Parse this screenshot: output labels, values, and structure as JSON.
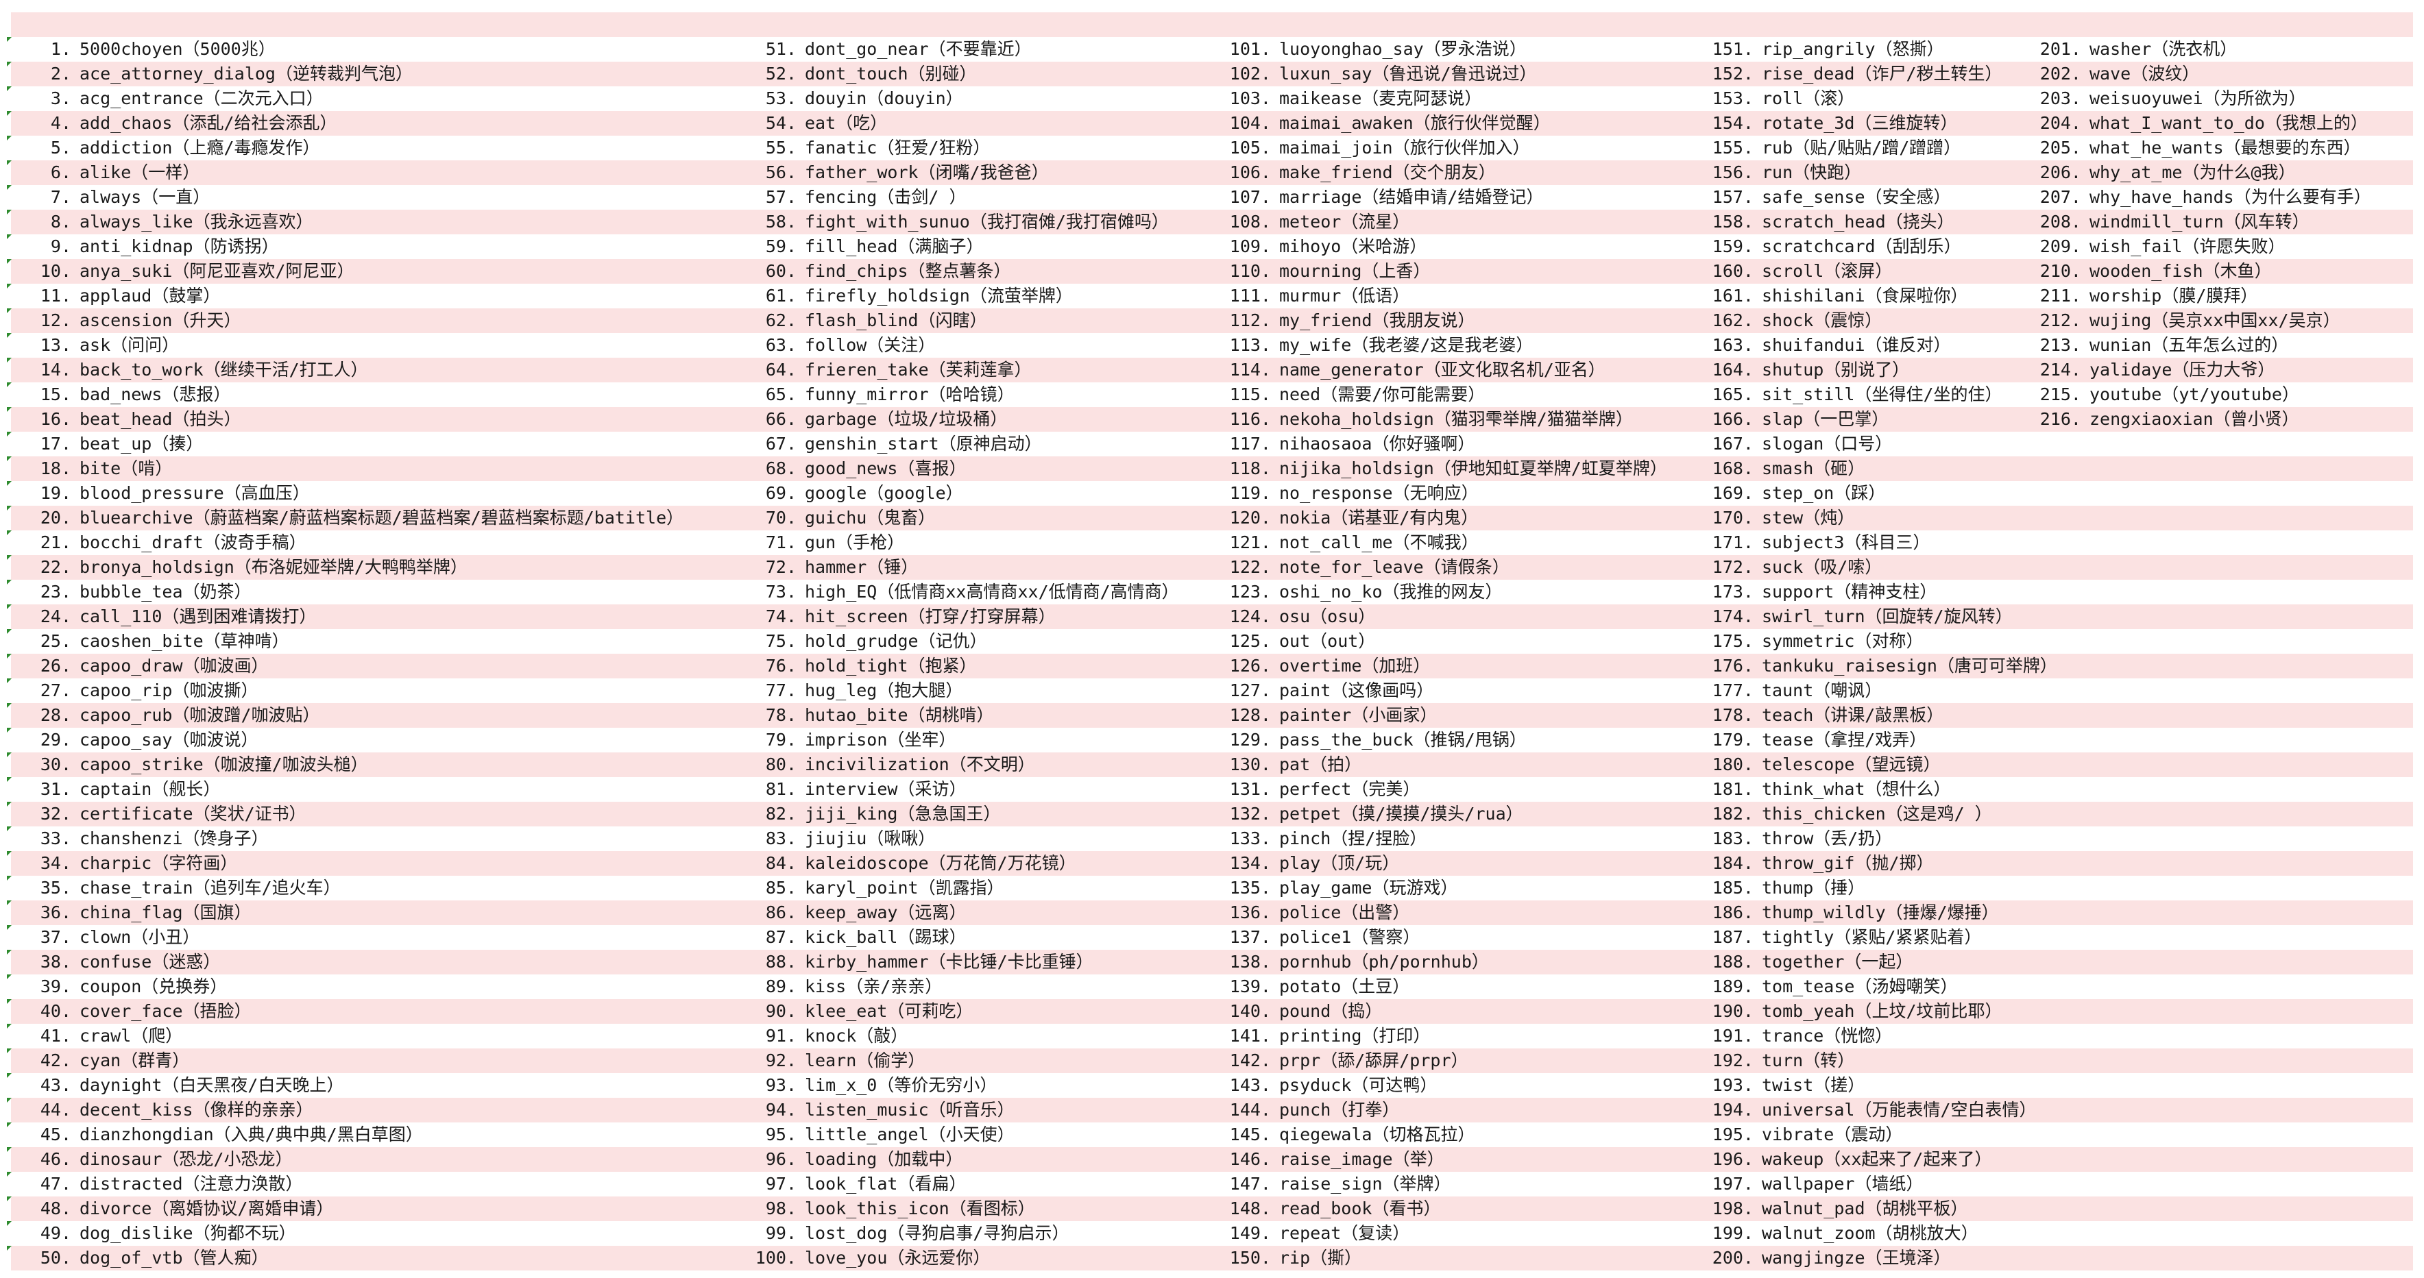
{
  "columns": [
    {
      "key": "c1",
      "items": [
        {
          "num": "1.",
          "text": "5000choyen（5000兆）"
        },
        {
          "num": "2.",
          "text": "ace_attorney_dialog（逆转裁判气泡）"
        },
        {
          "num": "3.",
          "text": "acg_entrance（二次元入口）"
        },
        {
          "num": "4.",
          "text": "add_chaos（添乱/给社会添乱）"
        },
        {
          "num": "5.",
          "text": "addiction（上瘾/毒瘾发作）"
        },
        {
          "num": "6.",
          "text": "alike（一样）"
        },
        {
          "num": "7.",
          "text": "always（一直）"
        },
        {
          "num": "8.",
          "text": "always_like（我永远喜欢）"
        },
        {
          "num": "9.",
          "text": "anti_kidnap（防诱拐）"
        },
        {
          "num": "10.",
          "text": "anya_suki（阿尼亚喜欢/阿尼亚）"
        },
        {
          "num": "11.",
          "text": "applaud（鼓掌）"
        },
        {
          "num": "12.",
          "text": "ascension（升天）"
        },
        {
          "num": "13.",
          "text": "ask（问问）"
        },
        {
          "num": "14.",
          "text": "back_to_work（继续干活/打工人）"
        },
        {
          "num": "15.",
          "text": "bad_news（悲报）"
        },
        {
          "num": "16.",
          "text": "beat_head（拍头）"
        },
        {
          "num": "17.",
          "text": "beat_up（揍）"
        },
        {
          "num": "18.",
          "text": "bite（啃）"
        },
        {
          "num": "19.",
          "text": "blood_pressure（高血压）"
        },
        {
          "num": "20.",
          "text": "bluearchive（蔚蓝档案/蔚蓝档案标题/碧蓝档案/碧蓝档案标题/batitle）"
        },
        {
          "num": "21.",
          "text": "bocchi_draft（波奇手稿）"
        },
        {
          "num": "22.",
          "text": "bronya_holdsign（布洛妮娅举牌/大鸭鸭举牌）"
        },
        {
          "num": "23.",
          "text": "bubble_tea（奶茶）"
        },
        {
          "num": "24.",
          "text": "call_110（遇到困难请拨打）"
        },
        {
          "num": "25.",
          "text": "caoshen_bite（草神啃）"
        },
        {
          "num": "26.",
          "text": "capoo_draw（咖波画）"
        },
        {
          "num": "27.",
          "text": "capoo_rip（咖波撕）"
        },
        {
          "num": "28.",
          "text": "capoo_rub（咖波蹭/咖波贴）"
        },
        {
          "num": "29.",
          "text": "capoo_say（咖波说）"
        },
        {
          "num": "30.",
          "text": "capoo_strike（咖波撞/咖波头槌）"
        },
        {
          "num": "31.",
          "text": "captain（舰长）"
        },
        {
          "num": "32.",
          "text": "certificate（奖状/证书）"
        },
        {
          "num": "33.",
          "text": "chanshenzi（馋身子）"
        },
        {
          "num": "34.",
          "text": "charpic（字符画）"
        },
        {
          "num": "35.",
          "text": "chase_train（追列车/追火车）"
        },
        {
          "num": "36.",
          "text": "china_flag（国旗）"
        },
        {
          "num": "37.",
          "text": "clown（小丑）"
        },
        {
          "num": "38.",
          "text": "confuse（迷惑）"
        },
        {
          "num": "39.",
          "text": "coupon（兑换券）"
        },
        {
          "num": "40.",
          "text": "cover_face（捂脸）"
        },
        {
          "num": "41.",
          "text": "crawl（爬）"
        },
        {
          "num": "42.",
          "text": "cyan（群青）"
        },
        {
          "num": "43.",
          "text": "daynight（白天黑夜/白天晚上）"
        },
        {
          "num": "44.",
          "text": "decent_kiss（像样的亲亲）"
        },
        {
          "num": "45.",
          "text": "dianzhongdian（入典/典中典/黑白草图）"
        },
        {
          "num": "46.",
          "text": "dinosaur（恐龙/小恐龙）"
        },
        {
          "num": "47.",
          "text": "distracted（注意力涣散）"
        },
        {
          "num": "48.",
          "text": "divorce（离婚协议/离婚申请）"
        },
        {
          "num": "49.",
          "text": "dog_dislike（狗都不玩）"
        },
        {
          "num": "50.",
          "text": "dog_of_vtb（管人痴）"
        }
      ]
    },
    {
      "key": "c2",
      "items": [
        {
          "num": "51.",
          "text": "dont_go_near（不要靠近）"
        },
        {
          "num": "52.",
          "text": "dont_touch（别碰）"
        },
        {
          "num": "53.",
          "text": "douyin（douyin）"
        },
        {
          "num": "54.",
          "text": "eat（吃）"
        },
        {
          "num": "55.",
          "text": "fanatic（狂爱/狂粉）"
        },
        {
          "num": "56.",
          "text": "father_work（闭嘴/我爸爸）"
        },
        {
          "num": "57.",
          "text": "fencing（击剑/  ）"
        },
        {
          "num": "58.",
          "text": "fight_with_sunuo（我打宿傩/我打宿傩吗）"
        },
        {
          "num": "59.",
          "text": "fill_head（满脑子）"
        },
        {
          "num": "60.",
          "text": "find_chips（整点薯条）"
        },
        {
          "num": "61.",
          "text": "firefly_holdsign（流萤举牌）"
        },
        {
          "num": "62.",
          "text": "flash_blind（闪瞎）"
        },
        {
          "num": "63.",
          "text": "follow（关注）"
        },
        {
          "num": "64.",
          "text": "frieren_take（芙莉莲拿）"
        },
        {
          "num": "65.",
          "text": "funny_mirror（哈哈镜）"
        },
        {
          "num": "66.",
          "text": "garbage（垃圾/垃圾桶）"
        },
        {
          "num": "67.",
          "text": "genshin_start（原神启动）"
        },
        {
          "num": "68.",
          "text": "good_news（喜报）"
        },
        {
          "num": "69.",
          "text": "google（google）"
        },
        {
          "num": "70.",
          "text": "guichu（鬼畜）"
        },
        {
          "num": "71.",
          "text": "gun（手枪）"
        },
        {
          "num": "72.",
          "text": "hammer（锤）"
        },
        {
          "num": "73.",
          "text": "high_EQ（低情商xx高情商xx/低情商/高情商）"
        },
        {
          "num": "74.",
          "text": "hit_screen（打穿/打穿屏幕）"
        },
        {
          "num": "75.",
          "text": "hold_grudge（记仇）"
        },
        {
          "num": "76.",
          "text": "hold_tight（抱紧）"
        },
        {
          "num": "77.",
          "text": "hug_leg（抱大腿）"
        },
        {
          "num": "78.",
          "text": "hutao_bite（胡桃啃）"
        },
        {
          "num": "79.",
          "text": "imprison（坐牢）"
        },
        {
          "num": "80.",
          "text": "incivilization（不文明）"
        },
        {
          "num": "81.",
          "text": "interview（采访）"
        },
        {
          "num": "82.",
          "text": "jiji_king（急急国王）"
        },
        {
          "num": "83.",
          "text": "jiujiu（啾啾）"
        },
        {
          "num": "84.",
          "text": "kaleidoscope（万花筒/万花镜）"
        },
        {
          "num": "85.",
          "text": "karyl_point（凯露指）"
        },
        {
          "num": "86.",
          "text": "keep_away（远离）"
        },
        {
          "num": "87.",
          "text": "kick_ball（踢球）"
        },
        {
          "num": "88.",
          "text": "kirby_hammer（卡比锤/卡比重锤）"
        },
        {
          "num": "89.",
          "text": "kiss（亲/亲亲）"
        },
        {
          "num": "90.",
          "text": "klee_eat（可莉吃）"
        },
        {
          "num": "91.",
          "text": "knock（敲）"
        },
        {
          "num": "92.",
          "text": "learn（偷学）"
        },
        {
          "num": "93.",
          "text": "lim_x_0（等价无穷小）"
        },
        {
          "num": "94.",
          "text": "listen_music（听音乐）"
        },
        {
          "num": "95.",
          "text": "little_angel（小天使）"
        },
        {
          "num": "96.",
          "text": "loading（加载中）"
        },
        {
          "num": "97.",
          "text": "look_flat（看扁）"
        },
        {
          "num": "98.",
          "text": "look_this_icon（看图标）"
        },
        {
          "num": "99.",
          "text": "lost_dog（寻狗启事/寻狗启示）"
        },
        {
          "num": "100.",
          "text": "love_you（永远爱你）"
        }
      ]
    },
    {
      "key": "c3",
      "items": [
        {
          "num": "101.",
          "text": "luoyonghao_say（罗永浩说）"
        },
        {
          "num": "102.",
          "text": "luxun_say（鲁迅说/鲁迅说过）"
        },
        {
          "num": "103.",
          "text": "maikease（麦克阿瑟说）"
        },
        {
          "num": "104.",
          "text": "maimai_awaken（旅行伙伴觉醒）"
        },
        {
          "num": "105.",
          "text": "maimai_join（旅行伙伴加入）"
        },
        {
          "num": "106.",
          "text": "make_friend（交个朋友）"
        },
        {
          "num": "107.",
          "text": "marriage（结婚申请/结婚登记）"
        },
        {
          "num": "108.",
          "text": "meteor（流星）"
        },
        {
          "num": "109.",
          "text": "mihoyo（米哈游）"
        },
        {
          "num": "110.",
          "text": "mourning（上香）"
        },
        {
          "num": "111.",
          "text": "murmur（低语）"
        },
        {
          "num": "112.",
          "text": "my_friend（我朋友说）"
        },
        {
          "num": "113.",
          "text": "my_wife（我老婆/这是我老婆）"
        },
        {
          "num": "114.",
          "text": "name_generator（亚文化取名机/亚名）"
        },
        {
          "num": "115.",
          "text": "need（需要/你可能需要）"
        },
        {
          "num": "116.",
          "text": "nekoha_holdsign（猫羽雫举牌/猫猫举牌）"
        },
        {
          "num": "117.",
          "text": "nihaosaoa（你好骚啊）"
        },
        {
          "num": "118.",
          "text": "nijika_holdsign（伊地知虹夏举牌/虹夏举牌）"
        },
        {
          "num": "119.",
          "text": "no_response（无响应）"
        },
        {
          "num": "120.",
          "text": "nokia（诺基亚/有内鬼）"
        },
        {
          "num": "121.",
          "text": "not_call_me（不喊我）"
        },
        {
          "num": "122.",
          "text": "note_for_leave（请假条）"
        },
        {
          "num": "123.",
          "text": "oshi_no_ko（我推的网友）"
        },
        {
          "num": "124.",
          "text": "osu（osu）"
        },
        {
          "num": "125.",
          "text": "out（out）"
        },
        {
          "num": "126.",
          "text": "overtime（加班）"
        },
        {
          "num": "127.",
          "text": "paint（这像画吗）"
        },
        {
          "num": "128.",
          "text": "painter（小画家）"
        },
        {
          "num": "129.",
          "text": "pass_the_buck（推锅/甩锅）"
        },
        {
          "num": "130.",
          "text": "pat（拍）"
        },
        {
          "num": "131.",
          "text": "perfect（完美）"
        },
        {
          "num": "132.",
          "text": "petpet（摸/摸摸/摸头/rua）"
        },
        {
          "num": "133.",
          "text": "pinch（捏/捏脸）"
        },
        {
          "num": "134.",
          "text": "play（顶/玩）"
        },
        {
          "num": "135.",
          "text": "play_game（玩游戏）"
        },
        {
          "num": "136.",
          "text": "police（出警）"
        },
        {
          "num": "137.",
          "text": "police1（警察）"
        },
        {
          "num": "138.",
          "text": "pornhub（ph/pornhub）"
        },
        {
          "num": "139.",
          "text": "potato（土豆）"
        },
        {
          "num": "140.",
          "text": "pound（捣）"
        },
        {
          "num": "141.",
          "text": "printing（打印）"
        },
        {
          "num": "142.",
          "text": "prpr（舔/舔屏/prpr）"
        },
        {
          "num": "143.",
          "text": "psyduck（可达鸭）"
        },
        {
          "num": "144.",
          "text": "punch（打拳）"
        },
        {
          "num": "145.",
          "text": "qiegewala（切格瓦拉）"
        },
        {
          "num": "146.",
          "text": "raise_image（举）"
        },
        {
          "num": "147.",
          "text": "raise_sign（举牌）"
        },
        {
          "num": "148.",
          "text": "read_book（看书）"
        },
        {
          "num": "149.",
          "text": "repeat（复读）"
        },
        {
          "num": "150.",
          "text": "rip（撕）"
        }
      ]
    },
    {
      "key": "c4",
      "items": [
        {
          "num": "151.",
          "text": "rip_angrily（怒撕）"
        },
        {
          "num": "152.",
          "text": "rise_dead（诈尸/秽土转生）"
        },
        {
          "num": "153.",
          "text": "roll（滚）"
        },
        {
          "num": "154.",
          "text": "rotate_3d（三维旋转）"
        },
        {
          "num": "155.",
          "text": "rub（贴/贴贴/蹭/蹭蹭）"
        },
        {
          "num": "156.",
          "text": "run（快跑）"
        },
        {
          "num": "157.",
          "text": "safe_sense（安全感）"
        },
        {
          "num": "158.",
          "text": "scratch_head（挠头）"
        },
        {
          "num": "159.",
          "text": "scratchcard（刮刮乐）"
        },
        {
          "num": "160.",
          "text": "scroll（滚屏）"
        },
        {
          "num": "161.",
          "text": "shishilani（食屎啦你）"
        },
        {
          "num": "162.",
          "text": "shock（震惊）"
        },
        {
          "num": "163.",
          "text": "shuifandui（谁反对）"
        },
        {
          "num": "164.",
          "text": "shutup（别说了）"
        },
        {
          "num": "165.",
          "text": "sit_still（坐得住/坐的住）"
        },
        {
          "num": "166.",
          "text": "slap（一巴掌）"
        },
        {
          "num": "167.",
          "text": "slogan（口号）"
        },
        {
          "num": "168.",
          "text": "smash（砸）"
        },
        {
          "num": "169.",
          "text": "step_on（踩）"
        },
        {
          "num": "170.",
          "text": "stew（炖）"
        },
        {
          "num": "171.",
          "text": "subject3（科目三）"
        },
        {
          "num": "172.",
          "text": "suck（吸/嗦）"
        },
        {
          "num": "173.",
          "text": "support（精神支柱）"
        },
        {
          "num": "174.",
          "text": "swirl_turn（回旋转/旋风转）"
        },
        {
          "num": "175.",
          "text": "symmetric（对称）"
        },
        {
          "num": "176.",
          "text": "tankuku_raisesign（唐可可举牌）"
        },
        {
          "num": "177.",
          "text": "taunt（嘲讽）"
        },
        {
          "num": "178.",
          "text": "teach（讲课/敲黑板）"
        },
        {
          "num": "179.",
          "text": "tease（拿捏/戏弄）"
        },
        {
          "num": "180.",
          "text": "telescope（望远镜）"
        },
        {
          "num": "181.",
          "text": "think_what（想什么）"
        },
        {
          "num": "182.",
          "text": "this_chicken（这是鸡/  ）"
        },
        {
          "num": "183.",
          "text": "throw（丢/扔）"
        },
        {
          "num": "184.",
          "text": "throw_gif（抛/掷）"
        },
        {
          "num": "185.",
          "text": "thump（捶）"
        },
        {
          "num": "186.",
          "text": "thump_wildly（捶爆/爆捶）"
        },
        {
          "num": "187.",
          "text": "tightly（紧贴/紧紧贴着）"
        },
        {
          "num": "188.",
          "text": "together（一起）"
        },
        {
          "num": "189.",
          "text": "tom_tease（汤姆嘲笑）"
        },
        {
          "num": "190.",
          "text": "tomb_yeah（上坟/坟前比耶）"
        },
        {
          "num": "191.",
          "text": "trance（恍惚）"
        },
        {
          "num": "192.",
          "text": "turn（转）"
        },
        {
          "num": "193.",
          "text": "twist（搓）"
        },
        {
          "num": "194.",
          "text": "universal（万能表情/空白表情）"
        },
        {
          "num": "195.",
          "text": "vibrate（震动）"
        },
        {
          "num": "196.",
          "text": "wakeup（xx起来了/起来了）"
        },
        {
          "num": "197.",
          "text": "wallpaper（墙纸）"
        },
        {
          "num": "198.",
          "text": "walnut_pad（胡桃平板）"
        },
        {
          "num": "199.",
          "text": "walnut_zoom（胡桃放大）"
        },
        {
          "num": "200.",
          "text": "wangjingze（王境泽）"
        }
      ]
    },
    {
      "key": "c5",
      "items": [
        {
          "num": "201.",
          "text": "washer（洗衣机）"
        },
        {
          "num": "202.",
          "text": "wave（波纹）"
        },
        {
          "num": "203.",
          "text": "weisuoyuwei（为所欲为）"
        },
        {
          "num": "204.",
          "text": "what_I_want_to_do（我想上的）"
        },
        {
          "num": "205.",
          "text": "what_he_wants（最想要的东西）"
        },
        {
          "num": "206.",
          "text": "why_at_me（为什么@我）"
        },
        {
          "num": "207.",
          "text": "why_have_hands（为什么要有手）"
        },
        {
          "num": "208.",
          "text": "windmill_turn（风车转）"
        },
        {
          "num": "209.",
          "text": "wish_fail（许愿失败）"
        },
        {
          "num": "210.",
          "text": "wooden_fish（木鱼）"
        },
        {
          "num": "211.",
          "text": "worship（膜/膜拜）"
        },
        {
          "num": "212.",
          "text": "wujing（吴京xx中国xx/吴京）"
        },
        {
          "num": "213.",
          "text": "wunian（五年怎么过的）"
        },
        {
          "num": "214.",
          "text": "yalidaye（压力大爷）"
        },
        {
          "num": "215.",
          "text": "youtube（yt/youtube）"
        },
        {
          "num": "216.",
          "text": "zengxiaoxian（曾小贤）"
        }
      ]
    }
  ]
}
